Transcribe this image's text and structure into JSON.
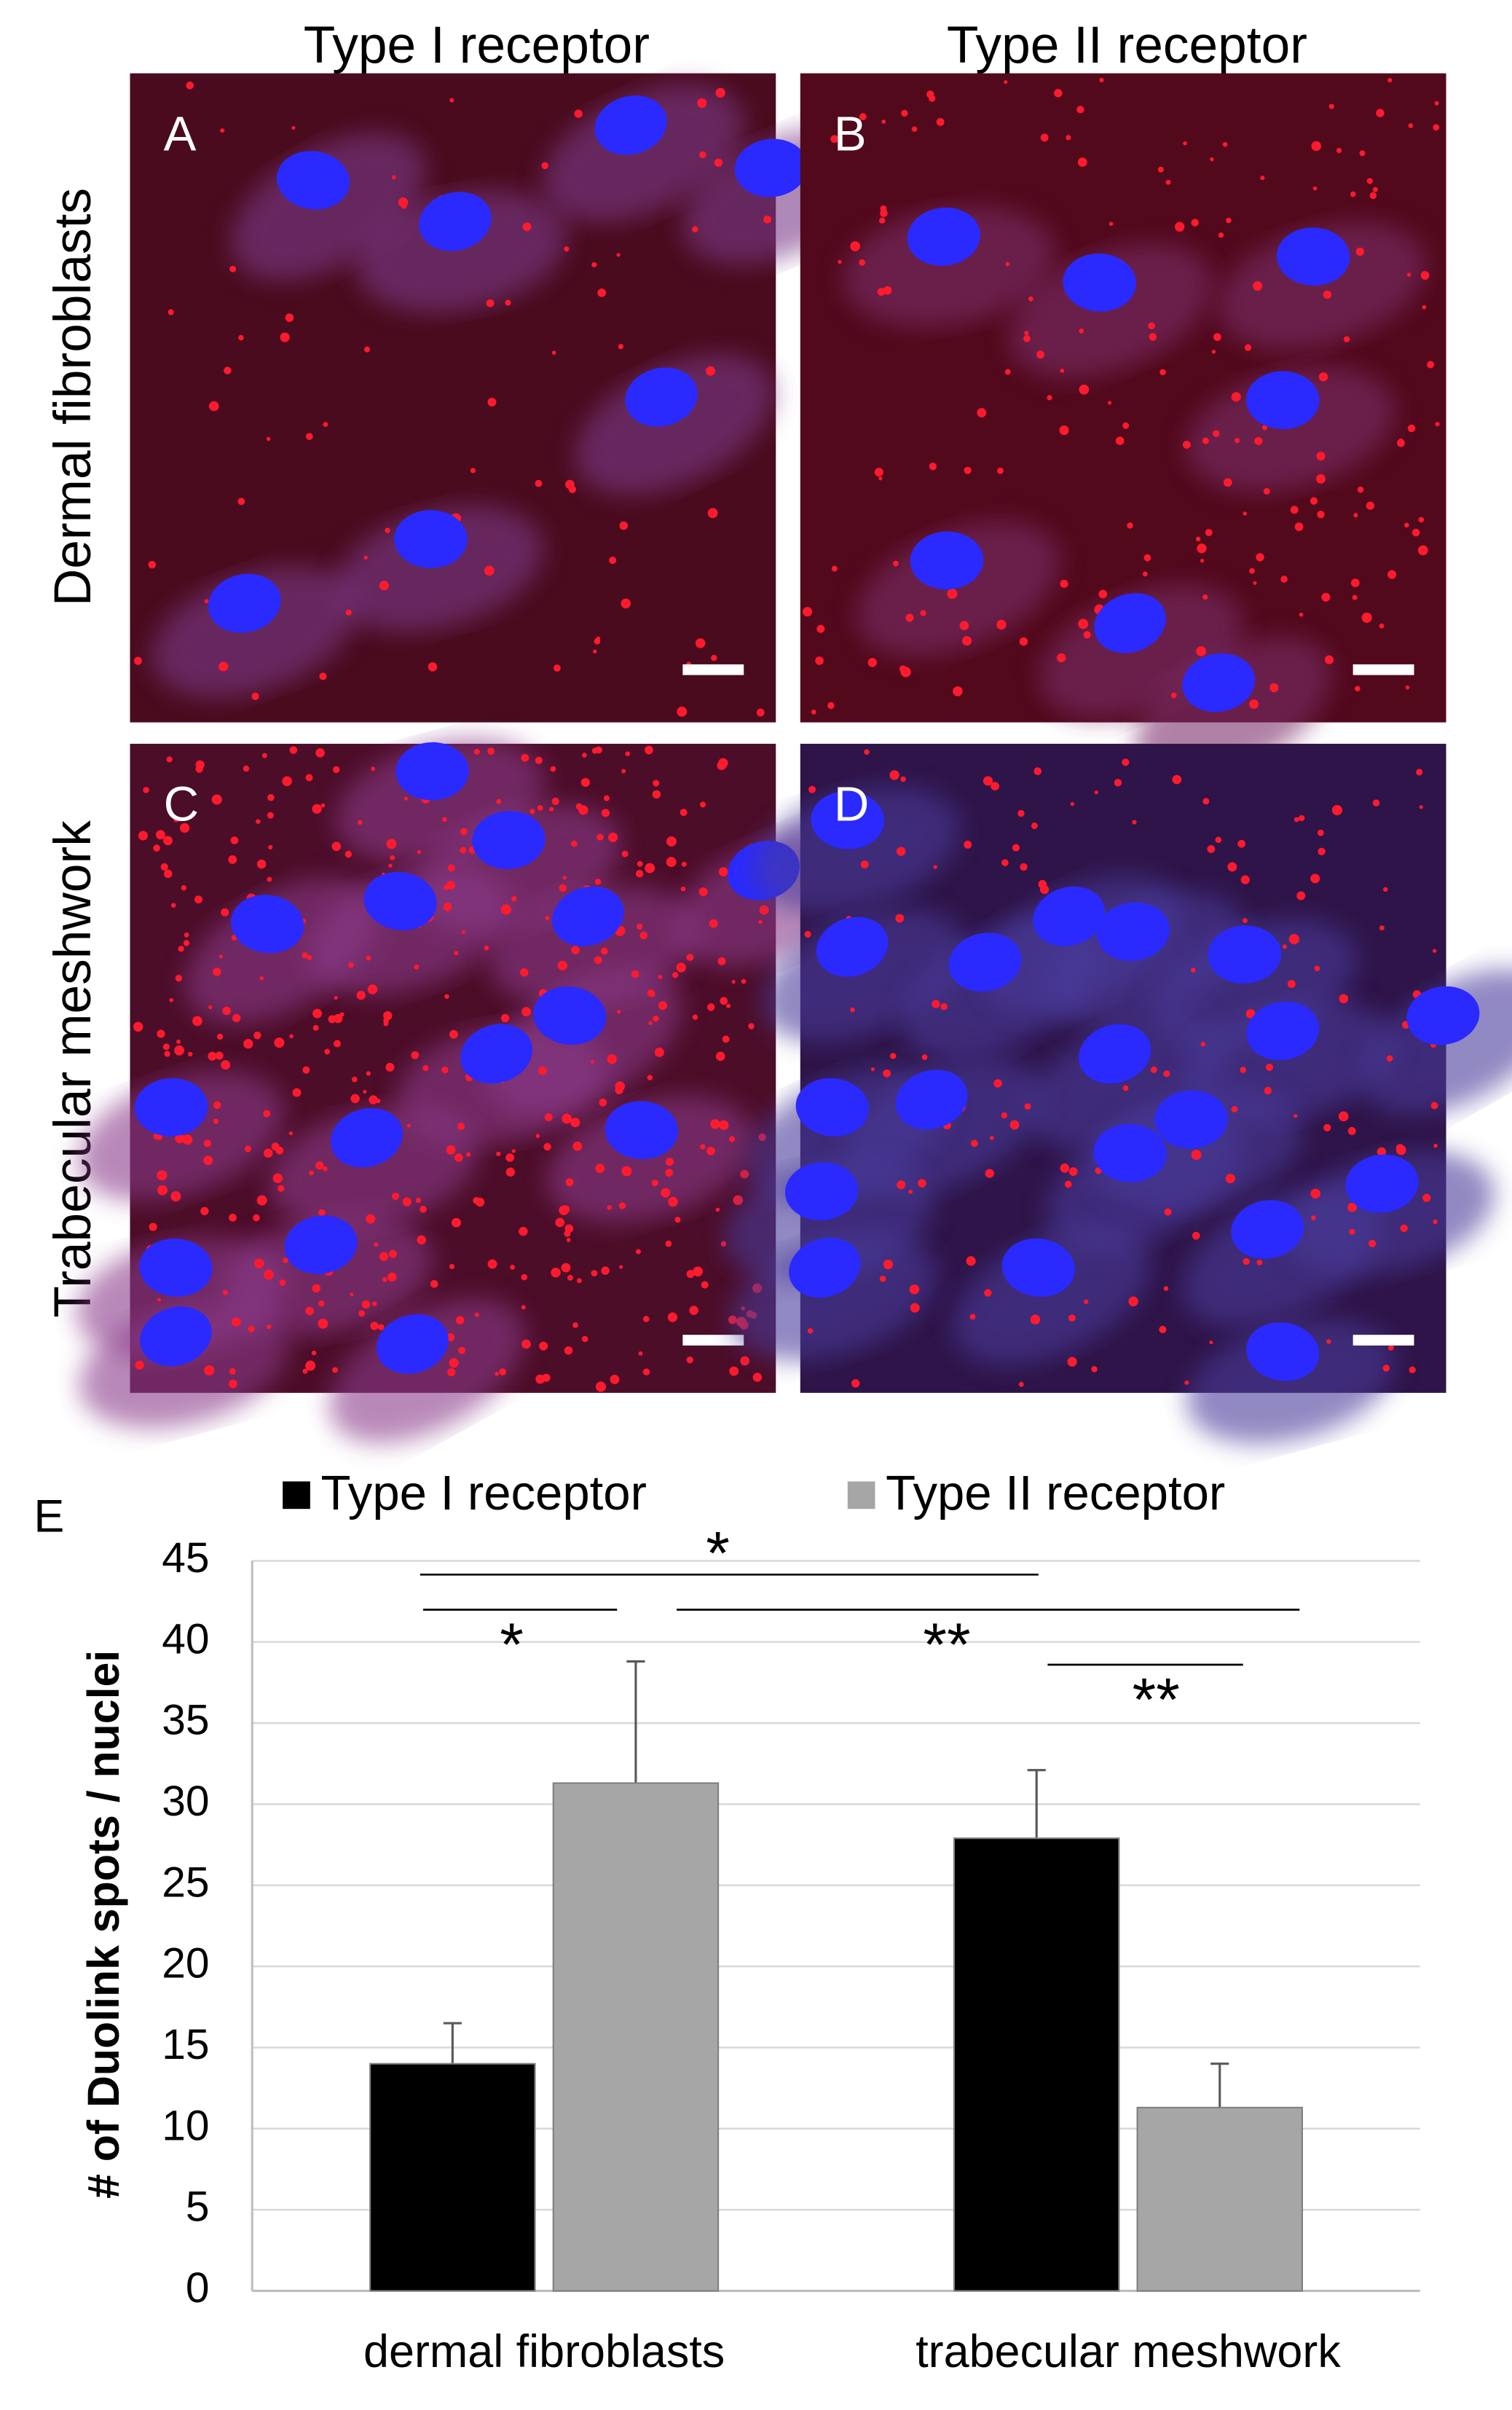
{
  "panels": {
    "column_labels": [
      "Type I receptor",
      "Type II receptor"
    ],
    "row_labels": [
      "Dermal fibroblasts",
      "Trabecular meshwork"
    ],
    "panel_labels": [
      "A",
      "B",
      "C",
      "D"
    ]
  },
  "chart_data": {
    "type": "bar",
    "panel_label": "E",
    "y_label": "# of Duolink spots / nuclei",
    "categories": [
      "dermal fibroblasts",
      "trabecular meshwork"
    ],
    "series": [
      {
        "name": "Type I receptor",
        "color": "#000000",
        "values": [
          14,
          27.9
        ],
        "errors": [
          2.5,
          4.2
        ]
      },
      {
        "name": "Type II receptor",
        "color": "#a6a6a6",
        "values": [
          31.3,
          11.3
        ],
        "errors": [
          7.5,
          2.7
        ]
      }
    ],
    "ylim": [
      0,
      45
    ],
    "yticks": [
      0,
      5,
      10,
      15,
      20,
      25,
      30,
      35,
      40,
      45
    ],
    "grid": true,
    "annotations": [
      "*",
      "*",
      "**",
      "**"
    ]
  }
}
